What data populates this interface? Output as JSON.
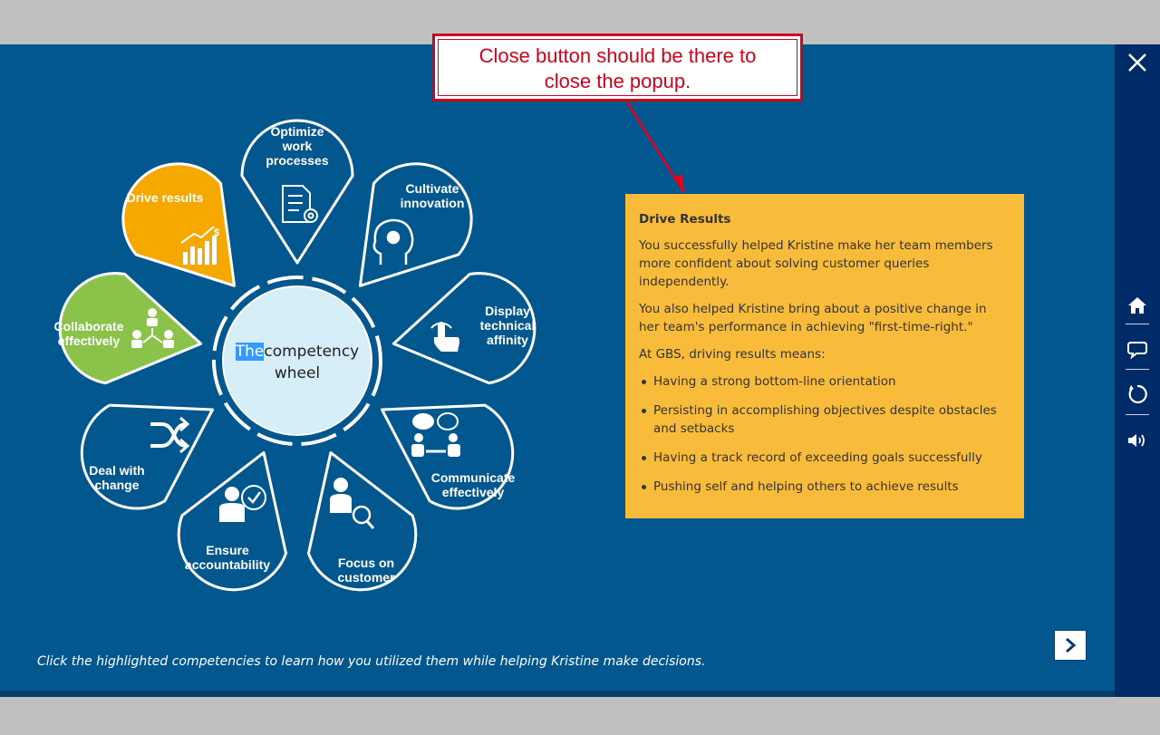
{
  "wheel": {
    "hub": {
      "word_selected": "The",
      "word_rest": "competency",
      "line2": "wheel"
    },
    "petals": [
      {
        "id": "optimize",
        "label_lines": [
          "Optimize",
          "work",
          "processes"
        ],
        "highlighted": false
      },
      {
        "id": "innovation",
        "label_lines": [
          "Cultivate",
          "innovation"
        ],
        "highlighted": false
      },
      {
        "id": "technical",
        "label_lines": [
          "Display",
          "technical",
          "affinity"
        ],
        "highlighted": false
      },
      {
        "id": "communicate",
        "label_lines": [
          "Communicate",
          "effectively"
        ],
        "highlighted": false
      },
      {
        "id": "customer",
        "label_lines": [
          "Focus on",
          "customer"
        ],
        "highlighted": false
      },
      {
        "id": "accountability",
        "label_lines": [
          "Ensure",
          "accountability"
        ],
        "highlighted": false
      },
      {
        "id": "change",
        "label_lines": [
          "Deal with",
          "change"
        ],
        "highlighted": false
      },
      {
        "id": "collaborate",
        "label_lines": [
          "Collaborate",
          "effectively"
        ],
        "highlighted": true,
        "color": "#8bc34a"
      },
      {
        "id": "drive",
        "label_lines": [
          "Drive results"
        ],
        "highlighted": true,
        "color": "#f5a800"
      }
    ]
  },
  "info_panel": {
    "title": "Drive Results",
    "paragraphs": [
      "You successfully helped Kristine make her team members more confident about solving customer queries independently.",
      "You also helped Kristine bring about a positive change in her team's performance in achieving \"first-time-right.\"",
      "At GBS, driving results means:"
    ],
    "bullets": [
      "Having a strong bottom-line orientation",
      "Persisting in accomplishing objectives despite obstacles and setbacks",
      "Having a track record of exceeding goals successfully",
      "Pushing self and helping others to achieve results"
    ],
    "background": "#f9bc3a"
  },
  "callout": {
    "line1": "Close button should be there to",
    "line2": "close the popup."
  },
  "instruction": "Click the highlighted competencies to learn how you utilized them while helping Kristine make decisions.",
  "sidebar": {
    "icons": [
      "close-icon",
      "home-icon",
      "comment-icon",
      "refresh-icon",
      "volume-icon"
    ]
  },
  "colors": {
    "stage": "#03578f",
    "sidebar": "#002b69",
    "hub": "#d6eef8",
    "callout_red": "#d0021b"
  }
}
